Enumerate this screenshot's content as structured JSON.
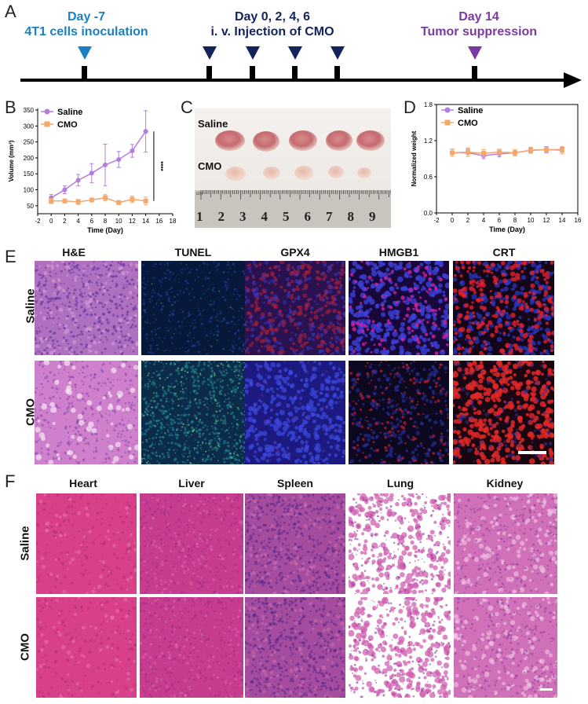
{
  "panels": {
    "A": "A",
    "B": "B",
    "C": "C",
    "D": "D",
    "E": "E",
    "F": "F"
  },
  "timeline": {
    "events": [
      {
        "line1": "Day -7",
        "line2": "4T1 cells inoculation",
        "color": "#1b7fc1",
        "marker_color": "#1b7fc1"
      },
      {
        "line1": "Day 0, 2, 4, 6",
        "line2": "i. v. Injection of CMO",
        "color": "#13235c",
        "marker_color": "#13235c"
      },
      {
        "line1": "Day 14",
        "line2": "Tumor suppression",
        "color": "#7a3aa0",
        "marker_color": "#7a3aa0"
      }
    ],
    "axis_color": "#000000"
  },
  "chart_data": [
    {
      "type": "line",
      "xlabel": "Time (Day)",
      "ylabel": "Volume (mm³)",
      "xlim": [
        -2,
        18
      ],
      "ylim": [
        25,
        355
      ],
      "xticks": [
        -2,
        0,
        2,
        4,
        6,
        8,
        10,
        12,
        14,
        16,
        18
      ],
      "yticks": [
        50,
        100,
        150,
        200,
        250,
        300,
        350
      ],
      "significance": "****",
      "series": [
        {
          "name": "Saline",
          "color": "#b57ce0",
          "marker": "circle",
          "x": [
            0,
            2,
            4,
            6,
            8,
            10,
            12,
            14
          ],
          "y": [
            75,
            100,
            130,
            152,
            178,
            195,
            222,
            283
          ],
          "err": [
            10,
            12,
            18,
            30,
            65,
            25,
            20,
            65
          ]
        },
        {
          "name": "CMO",
          "color": "#f4a96a",
          "marker": "square",
          "x": [
            0,
            2,
            4,
            6,
            8,
            10,
            12,
            14
          ],
          "y": [
            65,
            65,
            62,
            68,
            75,
            60,
            70,
            65
          ],
          "err": [
            8,
            6,
            8,
            6,
            10,
            6,
            10,
            12
          ]
        }
      ]
    },
    {
      "type": "line",
      "xlabel": "Time (Day)",
      "ylabel": "Normalized weight",
      "xlim": [
        -2,
        16
      ],
      "ylim": [
        0,
        1.8
      ],
      "xticks": [
        -2,
        0,
        2,
        4,
        6,
        8,
        10,
        12,
        14,
        16
      ],
      "yticks": [
        "0.0",
        "0.6",
        "1.2",
        "1.8"
      ],
      "series": [
        {
          "name": "Saline",
          "color": "#b57ce0",
          "marker": "circle",
          "x": [
            0,
            2,
            4,
            6,
            8,
            10,
            12,
            14
          ],
          "y": [
            1.0,
            1.0,
            0.95,
            0.98,
            1.0,
            1.04,
            1.05,
            1.05
          ],
          "err": [
            0.06,
            0.06,
            0.05,
            0.05,
            0.05,
            0.04,
            0.05,
            0.04
          ]
        },
        {
          "name": "CMO",
          "color": "#f4a96a",
          "marker": "square",
          "x": [
            0,
            2,
            4,
            6,
            8,
            10,
            12,
            14
          ],
          "y": [
            1.0,
            1.01,
            0.99,
            1.01,
            1.0,
            1.04,
            1.05,
            1.04
          ],
          "err": [
            0.06,
            0.07,
            0.06,
            0.05,
            0.05,
            0.05,
            0.04,
            0.06
          ]
        }
      ]
    }
  ],
  "photo": {
    "labels": [
      "Saline",
      "CMO"
    ],
    "ruler_numbers": [
      "1",
      "2",
      "3",
      "4",
      "5",
      "6",
      "7",
      "8",
      "9"
    ],
    "ruler_unit": "cm"
  },
  "staining": {
    "columns": [
      "H&E",
      "TUNEL",
      "GPX4",
      "HMGB1",
      "CRT"
    ],
    "rows": [
      "Saline",
      "CMO"
    ]
  },
  "organs": {
    "columns": [
      "Heart",
      "Liver",
      "Spleen",
      "Lung",
      "Kidney"
    ],
    "rows": [
      "Saline",
      "CMO"
    ]
  }
}
